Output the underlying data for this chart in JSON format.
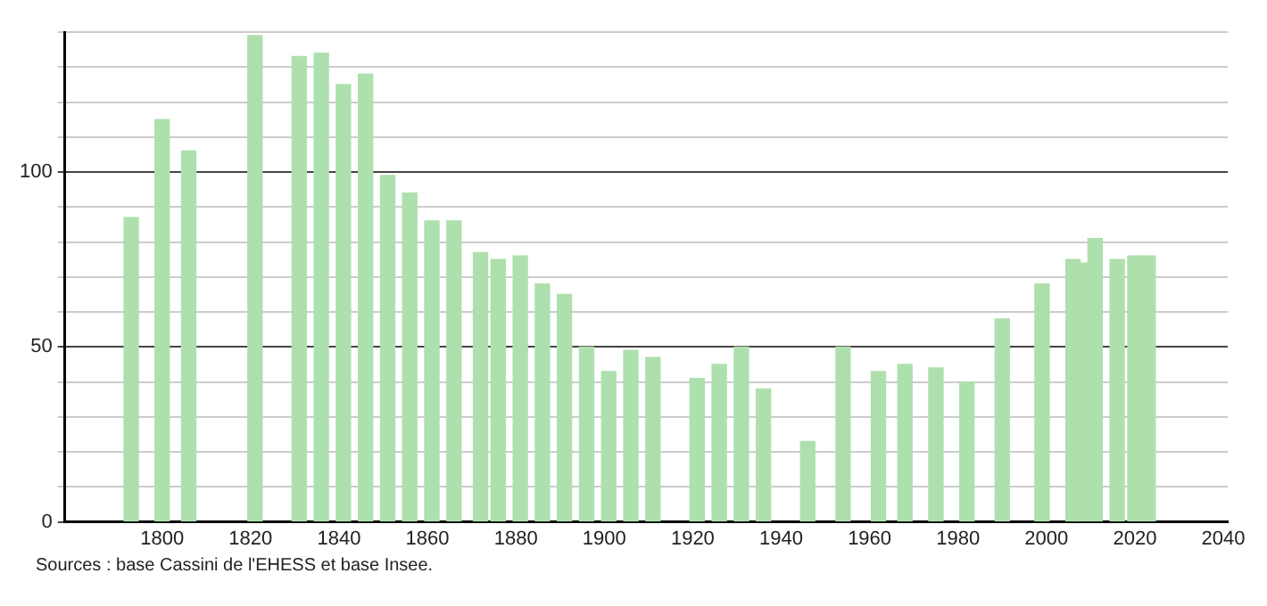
{
  "chart_data": {
    "type": "bar",
    "x": [
      1793,
      1800,
      1806,
      1821,
      1831,
      1836,
      1841,
      1846,
      1851,
      1856,
      1861,
      1866,
      1872,
      1876,
      1881,
      1886,
      1891,
      1896,
      1901,
      1906,
      1911,
      1921,
      1926,
      1931,
      1936,
      1946,
      1954,
      1962,
      1968,
      1975,
      1982,
      1990,
      1999,
      2006,
      2008,
      2011,
      2016,
      2020,
      2023
    ],
    "series": [
      {
        "color": "#ade0ad",
        "values": [
          87,
          115,
          106,
          139,
          133,
          134,
          125,
          128,
          99,
          94,
          86,
          86,
          77,
          75,
          76,
          68,
          65,
          50,
          43,
          49,
          47,
          41,
          45,
          50,
          38,
          23,
          50,
          43,
          45,
          44,
          40,
          58,
          68,
          75,
          74,
          81,
          75,
          76,
          76
        ]
      }
    ],
    "xlim": [
      1778,
      2041
    ],
    "xticks": [
      1800,
      1820,
      1840,
      1860,
      1880,
      1900,
      1920,
      1940,
      1960,
      1980,
      2000,
      2020,
      2040
    ],
    "ylim": [
      0,
      140
    ],
    "yticks": [
      0,
      {
        "value": 10,
        "label": null
      },
      {
        "value": 20,
        "label": null
      },
      {
        "value": 30,
        "label": null
      },
      {
        "value": 40,
        "label": null
      },
      50,
      {
        "value": 60,
        "label": null
      },
      {
        "value": 70,
        "label": null
      },
      {
        "value": 80,
        "label": null
      },
      {
        "value": 90,
        "label": null
      },
      100,
      {
        "value": 110,
        "label": null
      },
      {
        "value": 120,
        "label": null
      },
      {
        "value": 130,
        "label": null
      },
      {
        "value": 140,
        "label": null
      }
    ],
    "grid": "y",
    "legend": false,
    "annotations": [
      "Sources : base Cassini de l'EHESS et base Insee."
    ]
  }
}
